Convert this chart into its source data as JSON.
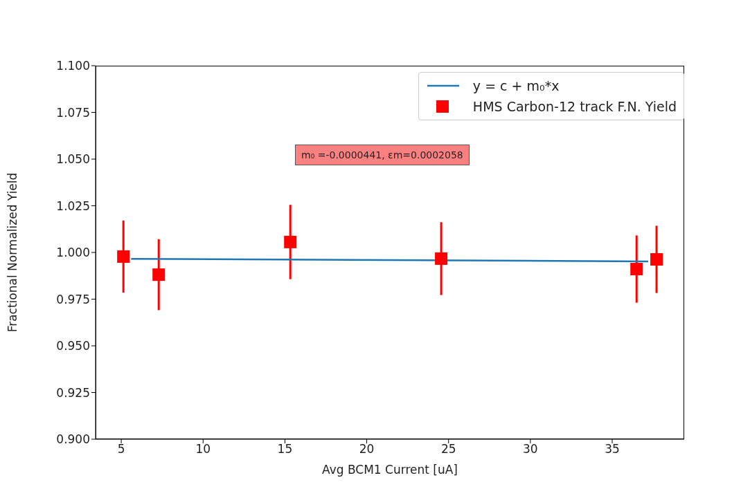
{
  "chart_data": {
    "type": "scatter",
    "xlabel": "Avg BCM1 Current [uA]",
    "ylabel": "Fractional Normalized Yield",
    "xlim": [
      3.43,
      39.4
    ],
    "xticks": [
      5,
      10,
      15,
      20,
      25,
      30,
      35
    ],
    "ylim": [
      0.9,
      1.1
    ],
    "yticks": [
      {
        "value": 0.9,
        "label": "0.900"
      },
      {
        "value": 0.925,
        "label": "0.925"
      },
      {
        "value": 0.95,
        "label": "0.950"
      },
      {
        "value": 0.975,
        "label": "0.975"
      },
      {
        "value": 1.0,
        "label": "1.000"
      },
      {
        "value": 1.025,
        "label": "1.025"
      },
      {
        "value": 1.05,
        "label": "1.050"
      },
      {
        "value": 1.075,
        "label": "1.075"
      },
      {
        "value": 1.1,
        "label": "1.100"
      }
    ],
    "grid": false,
    "legend": "top right",
    "annotations": [
      "m₀ =-0.0000441, εm=0.0002058"
    ],
    "series": [
      {
        "name": "y = c + m₀*x",
        "type": "line",
        "color": "#1f77b4",
        "x": [
          5.6,
          37.2
        ],
        "values": [
          0.9966,
          0.9952
        ]
      },
      {
        "name": "HMS Carbon-12 track F.N. Yield",
        "type": "scatter",
        "marker": "square",
        "color": "#ff0000",
        "x": [
          5.13,
          7.29,
          15.33,
          24.55,
          36.49,
          37.71
        ],
        "values": [
          0.9978,
          0.9881,
          1.0056,
          0.9967,
          0.9911,
          0.9963
        ],
        "errors": [
          0.0193,
          0.019,
          0.0199,
          0.0195,
          0.018,
          0.018
        ]
      }
    ]
  }
}
